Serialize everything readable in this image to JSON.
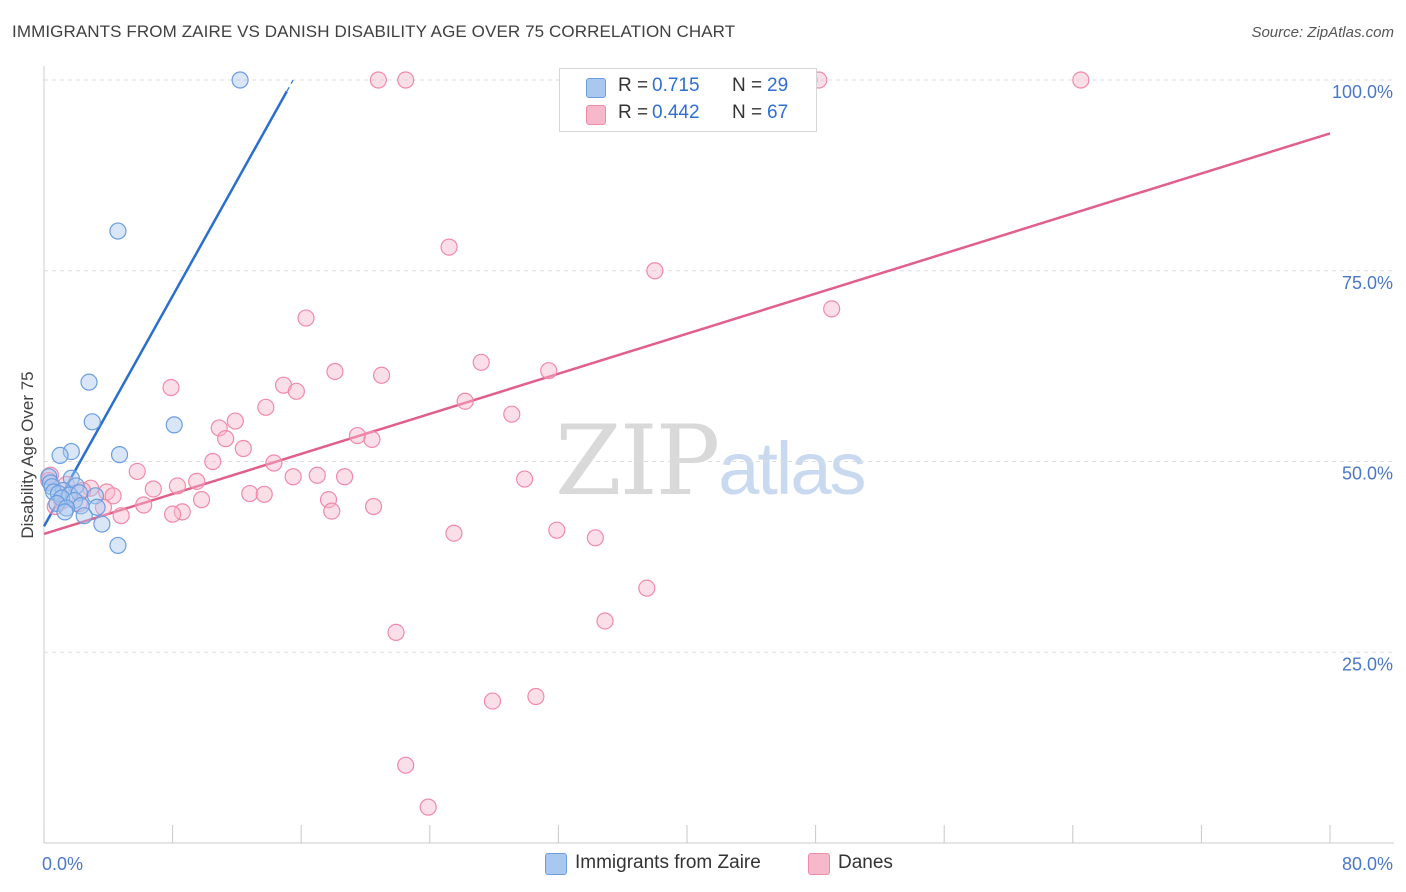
{
  "header": {
    "title": "IMMIGRANTS FROM ZAIRE VS DANISH DISABILITY AGE OVER 75 CORRELATION CHART",
    "source": "Source: ZipAtlas.com"
  },
  "watermark": {
    "zip": "ZIP",
    "atlas": "atlas"
  },
  "legend": {
    "rows": [
      {
        "r_key": "R =",
        "r_value": "0.715",
        "n_key": "N =",
        "n_value": "29",
        "color": "#a9c8f0"
      },
      {
        "r_key": "R =",
        "r_value": "0.442",
        "n_key": "N =",
        "n_value": "67",
        "color": "#f6b8cb"
      }
    ]
  },
  "bottom_legend": [
    {
      "label": "Immigrants from Zaire",
      "color": "#a9c8f0"
    },
    {
      "label": "Danes",
      "color": "#f6b8cb"
    }
  ],
  "chart_data": {
    "type": "scatter",
    "title": "IMMIGRANTS FROM ZAIRE VS DANISH DISABILITY AGE OVER 75 CORRELATION CHART",
    "xlabel": "",
    "ylabel": "Disability Age Over 75",
    "xlim": [
      0,
      80
    ],
    "ylim": [
      0,
      100
    ],
    "x_tick_labels": [
      "0.0%",
      "80.0%"
    ],
    "y_tick_labels": [
      "25.0%",
      "50.0%",
      "75.0%",
      "100.0%"
    ],
    "y_ticks": [
      25,
      50,
      75,
      100
    ],
    "grid": "horizontal dashed",
    "legend_placement": "top-center",
    "series": [
      {
        "name": "Immigrants from Zaire",
        "color": "#6a9ee0",
        "fill": "#a9c8f0",
        "line_color": "#2a6fd0",
        "trend": {
          "x0": 0,
          "y0": 41.5,
          "x1": 15.5,
          "y1": 100,
          "solid_until_x": 15.1
        },
        "points": [
          [
            12.2,
            100
          ],
          [
            4.6,
            80.2
          ],
          [
            2.8,
            60.4
          ],
          [
            3.0,
            55.2
          ],
          [
            8.1,
            54.8
          ],
          [
            1.7,
            51.3
          ],
          [
            1.0,
            50.8
          ],
          [
            4.7,
            50.9
          ],
          [
            0.3,
            48.0
          ],
          [
            1.7,
            47.8
          ],
          [
            0.4,
            47.2
          ],
          [
            0.5,
            46.7
          ],
          [
            2.0,
            46.8
          ],
          [
            1.2,
            46.2
          ],
          [
            0.6,
            46.0
          ],
          [
            0.9,
            45.8
          ],
          [
            3.2,
            45.5
          ],
          [
            1.6,
            45.6
          ],
          [
            2.2,
            45.9
          ],
          [
            1.1,
            45.2
          ],
          [
            1.9,
            44.9
          ],
          [
            0.8,
            44.5
          ],
          [
            2.3,
            44.2
          ],
          [
            1.4,
            43.9
          ],
          [
            3.3,
            44.0
          ],
          [
            1.3,
            43.4
          ],
          [
            2.5,
            42.9
          ],
          [
            3.6,
            41.8
          ],
          [
            4.6,
            39.0
          ]
        ]
      },
      {
        "name": "Danes",
        "color": "#f08aa8",
        "fill": "#f6b8cb",
        "line_color": "#e0608a",
        "trend": {
          "x0": 0,
          "y0": 40.5,
          "x1": 80,
          "y1": 93.0
        },
        "points": [
          [
            20.8,
            100
          ],
          [
            22.5,
            100
          ],
          [
            40.0,
            100
          ],
          [
            47.6,
            100
          ],
          [
            48.2,
            100
          ],
          [
            64.5,
            100
          ],
          [
            25.2,
            78.1
          ],
          [
            38.0,
            75.0
          ],
          [
            49.0,
            70.0
          ],
          [
            16.3,
            68.8
          ],
          [
            27.2,
            63.0
          ],
          [
            18.1,
            61.8
          ],
          [
            31.4,
            61.9
          ],
          [
            21.0,
            61.3
          ],
          [
            7.9,
            59.7
          ],
          [
            14.9,
            60.0
          ],
          [
            15.7,
            59.2
          ],
          [
            26.2,
            57.9
          ],
          [
            13.8,
            57.1
          ],
          [
            29.1,
            56.2
          ],
          [
            11.9,
            55.3
          ],
          [
            10.9,
            54.4
          ],
          [
            19.5,
            53.4
          ],
          [
            20.4,
            52.9
          ],
          [
            11.3,
            53.0
          ],
          [
            12.4,
            51.7
          ],
          [
            10.5,
            50.0
          ],
          [
            14.3,
            49.8
          ],
          [
            5.8,
            48.7
          ],
          [
            17.0,
            48.2
          ],
          [
            15.5,
            48.0
          ],
          [
            18.7,
            48.0
          ],
          [
            29.9,
            47.7
          ],
          [
            9.5,
            47.4
          ],
          [
            1.4,
            47.0
          ],
          [
            8.3,
            46.8
          ],
          [
            2.9,
            46.5
          ],
          [
            6.8,
            46.4
          ],
          [
            3.9,
            46.0
          ],
          [
            2.4,
            46.2
          ],
          [
            0.4,
            48.2
          ],
          [
            12.8,
            45.8
          ],
          [
            13.7,
            45.7
          ],
          [
            4.3,
            45.5
          ],
          [
            9.8,
            45.0
          ],
          [
            17.7,
            45.0
          ],
          [
            1.1,
            44.8
          ],
          [
            2.2,
            44.5
          ],
          [
            6.2,
            44.3
          ],
          [
            3.7,
            44.0
          ],
          [
            0.7,
            44.1
          ],
          [
            20.5,
            44.1
          ],
          [
            17.9,
            43.5
          ],
          [
            8.6,
            43.4
          ],
          [
            8.0,
            43.1
          ],
          [
            4.8,
            42.9
          ],
          [
            31.9,
            41.0
          ],
          [
            25.5,
            40.6
          ],
          [
            34.3,
            40.0
          ],
          [
            37.5,
            33.4
          ],
          [
            34.9,
            29.1
          ],
          [
            21.9,
            27.6
          ],
          [
            30.6,
            19.2
          ],
          [
            27.9,
            18.6
          ],
          [
            22.5,
            10.2
          ],
          [
            23.9,
            4.7
          ],
          [
            0.3,
            47.5
          ]
        ]
      }
    ]
  }
}
